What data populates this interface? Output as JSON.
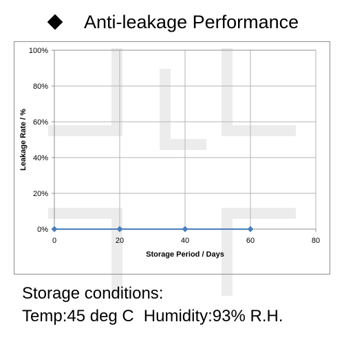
{
  "header": {
    "title": "Anti-leakage Performance"
  },
  "chart_data": {
    "type": "line",
    "title": "",
    "xlabel": "Storage Period / Days",
    "ylabel": "Leakage Rate / %",
    "xlim": [
      0,
      80
    ],
    "ylim": [
      0,
      100
    ],
    "x_ticks": [
      "0",
      "20",
      "40",
      "60",
      "80"
    ],
    "y_ticks": [
      "0%",
      "20%",
      "40%",
      "60%",
      "80%",
      "100%"
    ],
    "x_tick_values": [
      0,
      20,
      40,
      60,
      80
    ],
    "y_tick_values": [
      0,
      20,
      40,
      60,
      80,
      100
    ],
    "grid": true,
    "legend": "none",
    "series": [
      {
        "x": [
          0,
          20,
          40,
          60
        ],
        "y": [
          0,
          0,
          0,
          0
        ],
        "color": "#4a7ebb",
        "marker": "diamond"
      }
    ]
  },
  "conditions": {
    "heading": "Storage conditions:",
    "temp": "Temp:45 deg C",
    "humidity": "Humidity:93% R.H."
  },
  "watermark": {
    "text": "SUSART.RU",
    "color": "#e6e6e6"
  }
}
